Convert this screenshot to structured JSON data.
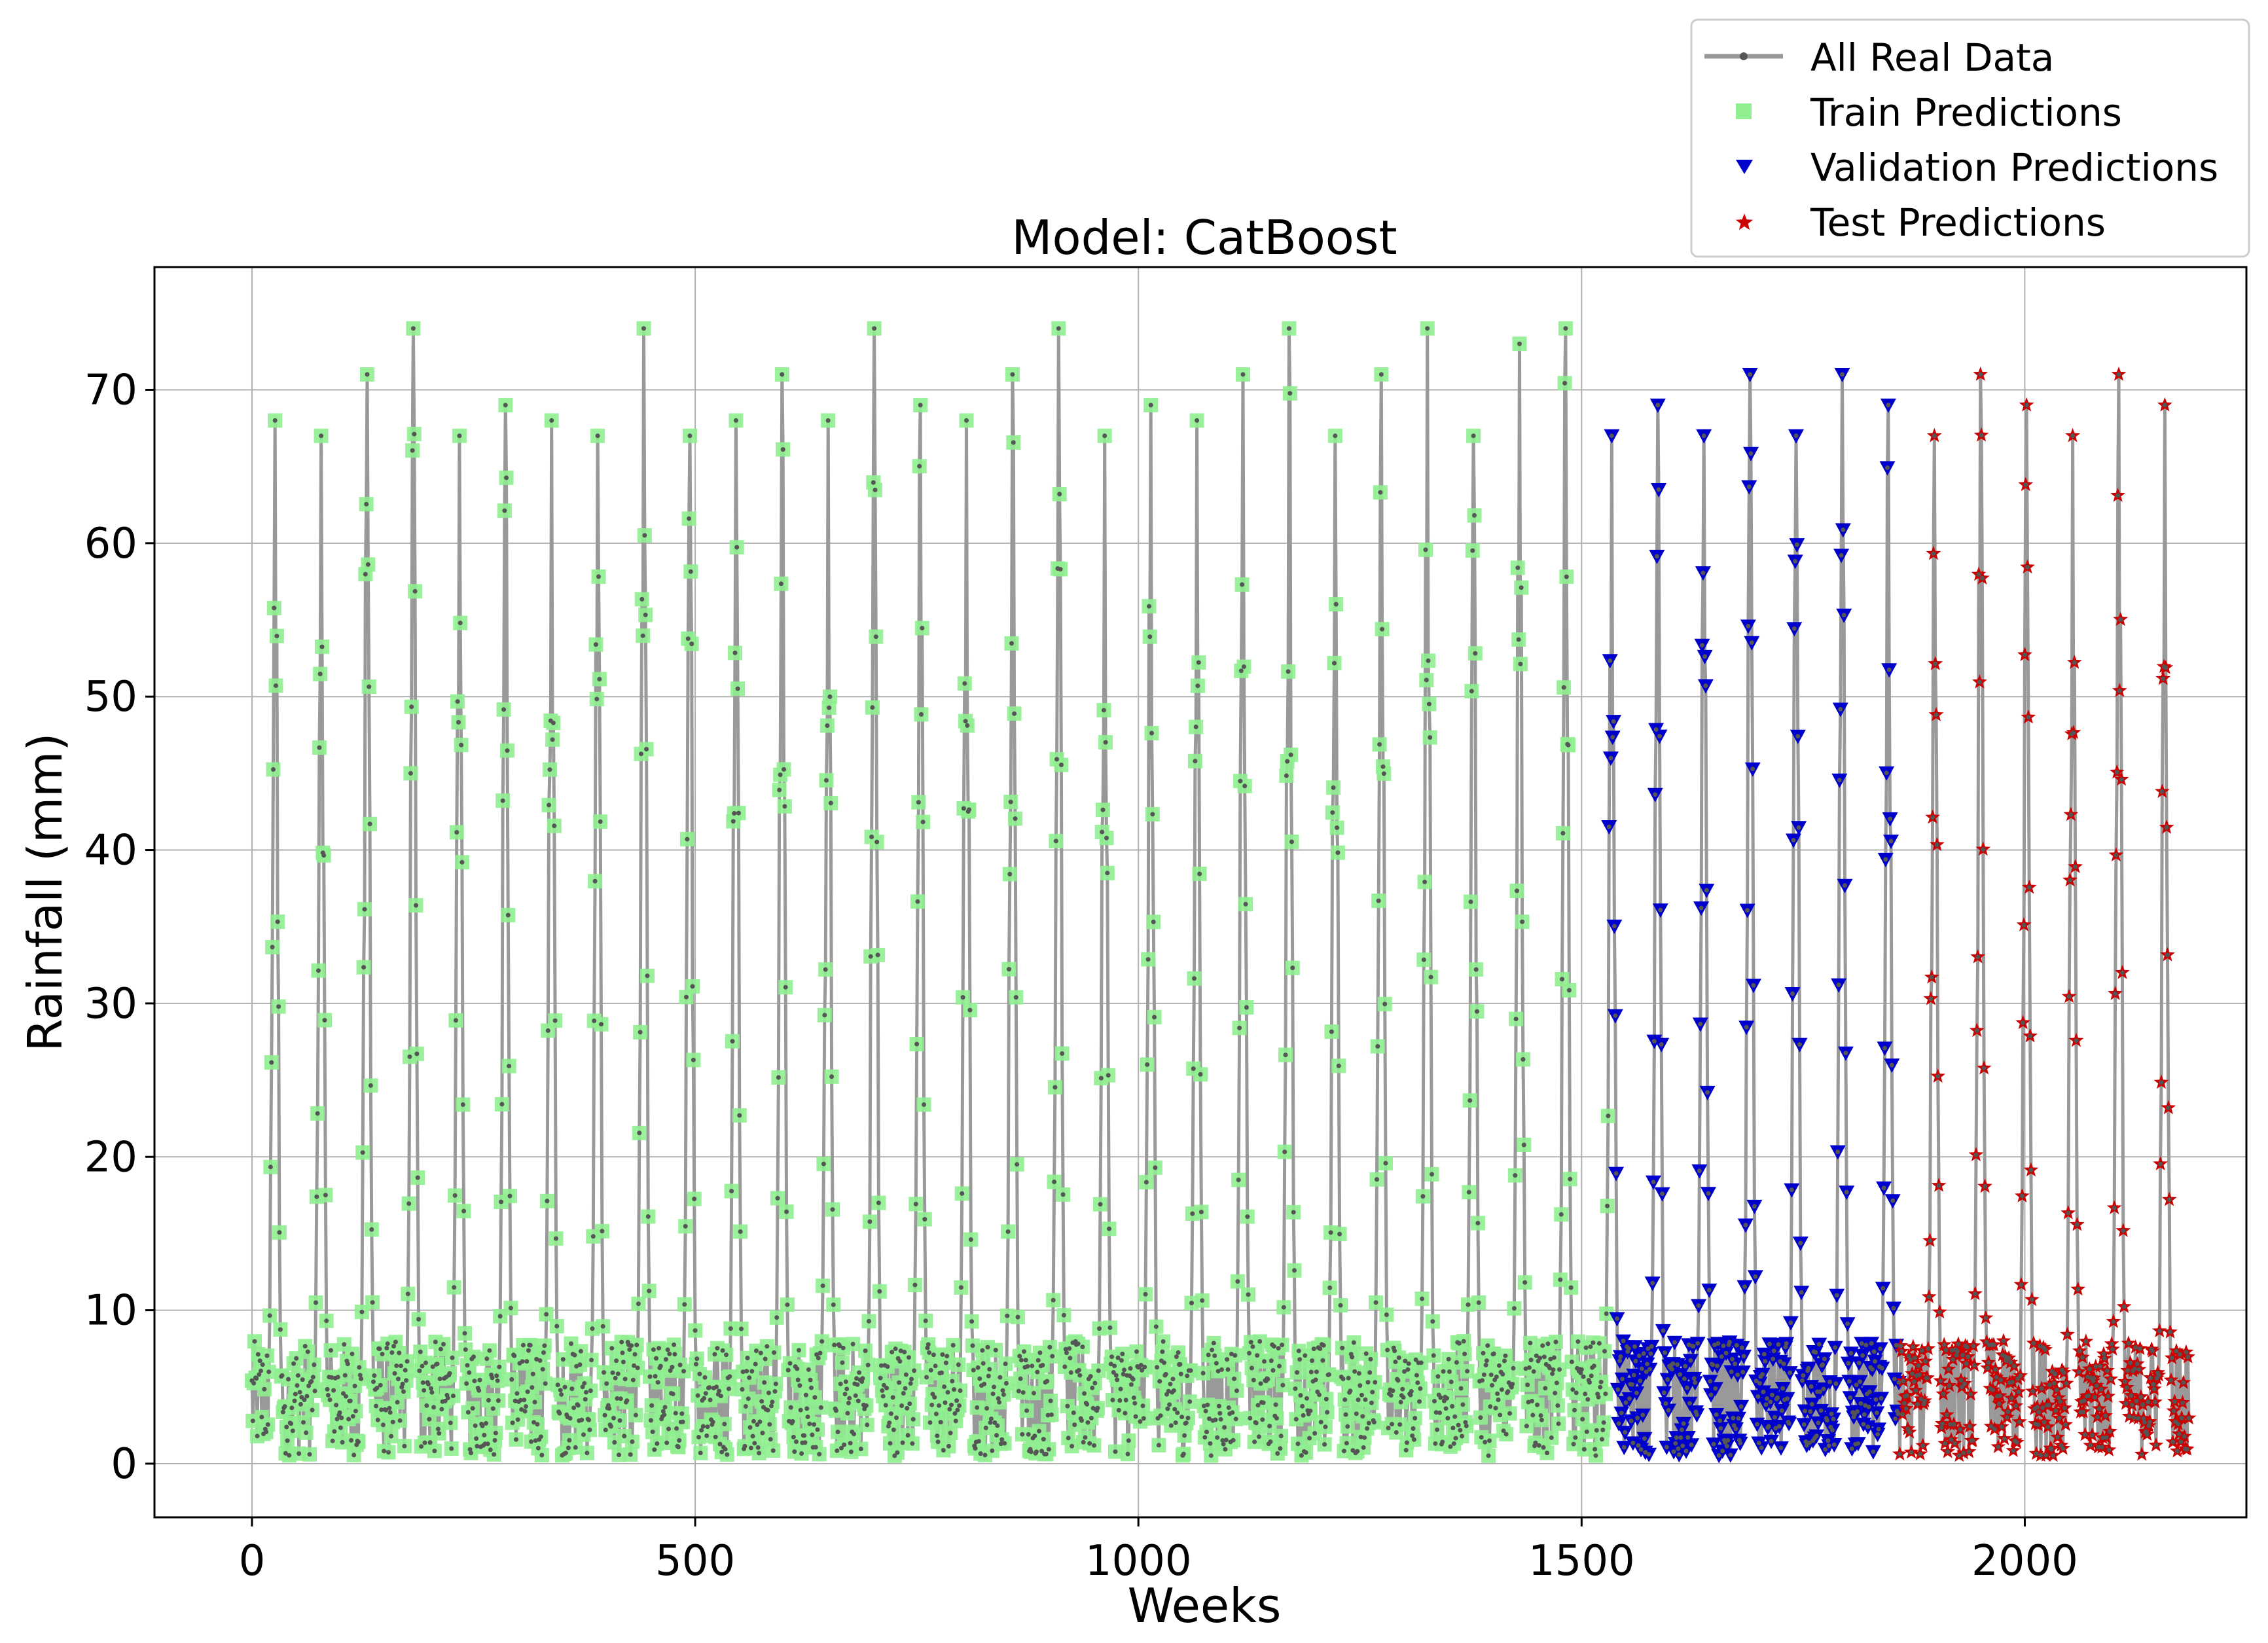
{
  "chart_data": {
    "type": "line",
    "title": "Model: CatBoost",
    "xlabel": "Weeks",
    "ylabel": "Rainfall (mm)",
    "xlim": [
      -110,
      2250
    ],
    "ylim": [
      -3.5,
      78
    ],
    "xticks": [
      0,
      500,
      1000,
      1500,
      2000
    ],
    "yticks": [
      0,
      10,
      20,
      30,
      40,
      50,
      60,
      70
    ],
    "grid": true,
    "legend_position": "top-right (outside, above plot)",
    "series": [
      {
        "name": "All Real Data",
        "kind": "line",
        "color": "#999999",
        "marker_color": "#555555",
        "x_range": [
          0,
          2185
        ]
      },
      {
        "name": "Train Predictions",
        "kind": "marker",
        "marker": "square",
        "color": "#90ee90",
        "x_range": [
          0,
          1530
        ]
      },
      {
        "name": "Validation Predictions",
        "kind": "marker",
        "marker": "triangle-down",
        "color": "#0000cc",
        "x_range": [
          1531,
          1858
        ]
      },
      {
        "name": "Test Predictions",
        "kind": "marker",
        "marker": "star",
        "color": "#cc0000",
        "x_range": [
          1859,
          2185
        ]
      }
    ],
    "seasonal_pattern": {
      "period_weeks": 52,
      "first_peak_week": 26,
      "baseline_mm": [
        0.5,
        8
      ],
      "annual_peaks_mm": [
        68,
        67,
        71,
        74,
        67,
        69,
        68,
        67,
        74,
        67,
        68,
        71,
        68,
        74,
        69,
        68,
        71,
        74,
        67,
        69,
        68,
        71,
        74,
        67,
        71,
        74,
        67,
        73,
        74,
        67,
        69,
        67,
        71,
        67,
        71,
        69,
        67,
        71,
        69,
        67,
        71,
        69
      ]
    }
  },
  "legend": {
    "items": [
      {
        "label": "All Real Data"
      },
      {
        "label": "Train Predictions"
      },
      {
        "label": "Validation Predictions"
      },
      {
        "label": "Test Predictions"
      }
    ]
  }
}
